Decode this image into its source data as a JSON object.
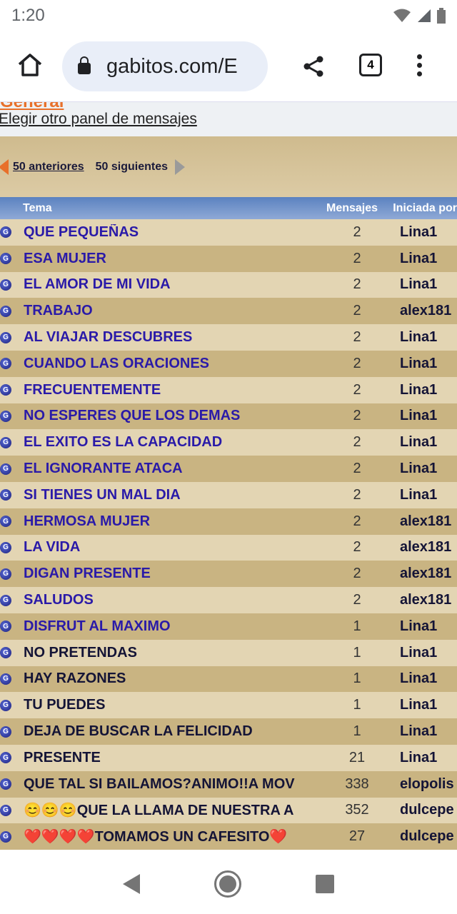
{
  "status": {
    "time": "1:20"
  },
  "browser": {
    "url": "gabitos.com/E",
    "tab_count": "4"
  },
  "page": {
    "partial_heading": "General",
    "change_panel_link": "Elegir otro panel de mensajes",
    "prev_label": "50 anteriores",
    "next_label": "50 siguientes",
    "columns": {
      "topic": "Tema",
      "messages": "Mensajes",
      "started_by": "Iniciada por"
    },
    "rows": [
      {
        "title": "QUE PEQUEÑAS",
        "count": "2",
        "author": "Lina1",
        "visited": true
      },
      {
        "title": "ESA MUJER",
        "count": "2",
        "author": "Lina1",
        "visited": true
      },
      {
        "title": "EL AMOR DE MI VIDA",
        "count": "2",
        "author": "Lina1",
        "visited": true
      },
      {
        "title": "TRABAJO",
        "count": "2",
        "author": "alex181",
        "visited": true
      },
      {
        "title": "AL VIAJAR DESCUBRES",
        "count": "2",
        "author": "Lina1",
        "visited": true
      },
      {
        "title": "CUANDO LAS ORACIONES",
        "count": "2",
        "author": "Lina1",
        "visited": true
      },
      {
        "title": "FRECUENTEMENTE",
        "count": "2",
        "author": "Lina1",
        "visited": true
      },
      {
        "title": "NO ESPERES QUE LOS DEMAS",
        "count": "2",
        "author": "Lina1",
        "visited": true
      },
      {
        "title": "EL EXITO ES LA CAPACIDAD",
        "count": "2",
        "author": "Lina1",
        "visited": true
      },
      {
        "title": "EL IGNORANTE ATACA",
        "count": "2",
        "author": "Lina1",
        "visited": true
      },
      {
        "title": "SI TIENES UN MAL DIA",
        "count": "2",
        "author": "Lina1",
        "visited": true
      },
      {
        "title": "HERMOSA MUJER",
        "count": "2",
        "author": "alex181",
        "visited": true
      },
      {
        "title": "LA VIDA",
        "count": "2",
        "author": "alex181",
        "visited": true
      },
      {
        "title": "DIGAN PRESENTE",
        "count": "2",
        "author": "alex181",
        "visited": true
      },
      {
        "title": "SALUDOS",
        "count": "2",
        "author": "alex181",
        "visited": true
      },
      {
        "title": "DISFRUT AL MAXIMO",
        "count": "1",
        "author": "Lina1",
        "visited": true
      },
      {
        "title": "NO PRETENDAS",
        "count": "1",
        "author": "Lina1",
        "visited": false
      },
      {
        "title": "HAY RAZONES",
        "count": "1",
        "author": "Lina1",
        "visited": false
      },
      {
        "title": "TU PUEDES",
        "count": "1",
        "author": "Lina1",
        "visited": false
      },
      {
        "title": "DEJA DE BUSCAR LA FELICIDAD",
        "count": "1",
        "author": "Lina1",
        "visited": false
      },
      {
        "title": "PRESENTE",
        "count": "21",
        "author": "Lina1",
        "visited": false
      },
      {
        "title": "QUE TAL SI BAILAMOS?ANIMO!!A MOV",
        "count": "338",
        "author": "elopolis",
        "visited": false
      },
      {
        "title": "😊😊😊QUE LA LLAMA DE NUESTRA A",
        "count": "352",
        "author": "dulcepe",
        "visited": false
      },
      {
        "title": "❤️❤️❤️❤️TOMAMOS UN CAFESITO❤️",
        "count": "27",
        "author": "dulcepe",
        "visited": false
      }
    ]
  },
  "colors": {
    "visited_link": "#2a1aa8",
    "link": "#141436",
    "row_light": "#e3d5b3",
    "row_dark": "#c9b482",
    "header": "#6b8fc8",
    "accent": "#e8702a"
  }
}
